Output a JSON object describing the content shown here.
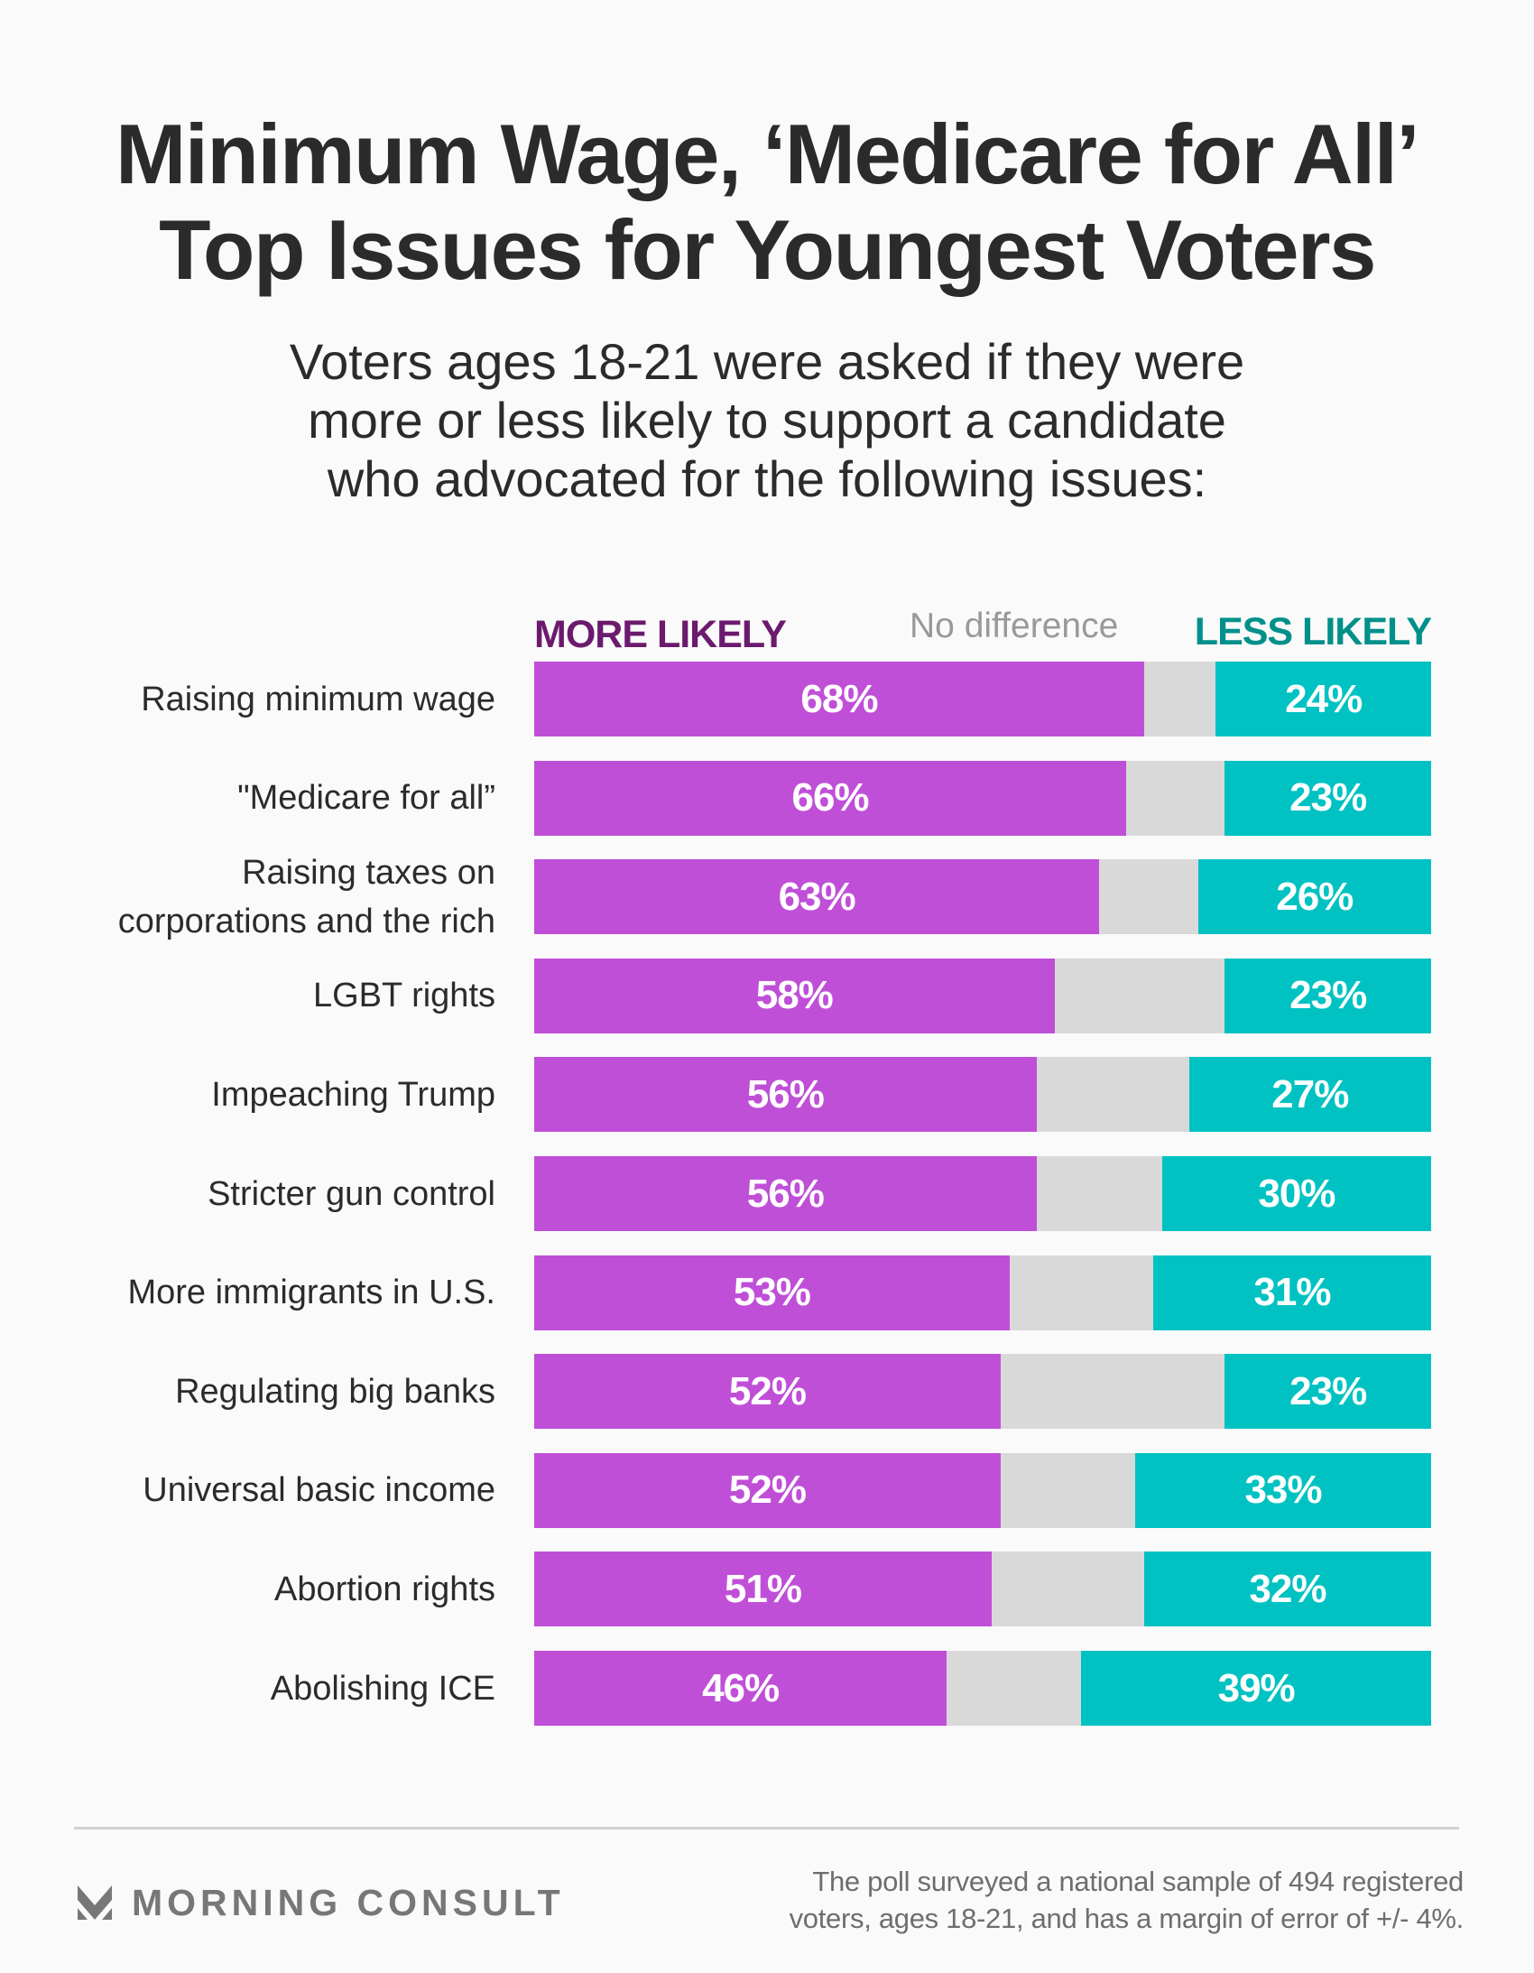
{
  "header": {
    "title_lines": [
      "Minimum Wage, ‘Medicare for All’",
      "Top Issues for Youngest Voters"
    ],
    "subtitle_lines": [
      "Voters ages 18-21 were asked if they were",
      "more or less likely to support a candidate",
      "who advocated for the following issues:"
    ]
  },
  "colors": {
    "more_likely": "#c04fd8",
    "no_difference": "#d9d9d9",
    "less_likely": "#00c2c2",
    "more_likely_legend": "#6b1a6e",
    "less_likely_legend": "#00908a",
    "background": "#fafafa"
  },
  "chart_data": {
    "type": "bar",
    "orientation": "horizontal-stacked",
    "title": "Minimum Wage, ‘Medicare for All’ Top Issues for Youngest Voters",
    "subtitle": "Voters ages 18-21 were asked if they were more or less likely to support a candidate who advocated for the following issues:",
    "legend": {
      "placement": "top",
      "entries": [
        "MORE LIKELY",
        "No difference",
        "LESS LIKELY"
      ]
    },
    "unit": "%",
    "xlim": [
      0,
      100
    ],
    "categories": [
      [
        "Raising minimum wage"
      ],
      [
        "\"Medicare for all”"
      ],
      [
        "Raising taxes on",
        "corporations and the rich"
      ],
      [
        "LGBT rights"
      ],
      [
        "Impeaching Trump"
      ],
      [
        "Stricter gun control"
      ],
      [
        "More immigrants in U.S."
      ],
      [
        "Regulating big banks"
      ],
      [
        "Universal basic income"
      ],
      [
        "Abortion rights"
      ],
      [
        "Abolishing ICE"
      ]
    ],
    "series": [
      {
        "name": "MORE LIKELY",
        "values": [
          68,
          66,
          63,
          58,
          56,
          56,
          53,
          52,
          52,
          51,
          46
        ]
      },
      {
        "name": "No difference",
        "values": [
          8,
          11,
          11,
          19,
          17,
          14,
          16,
          25,
          15,
          17,
          15
        ],
        "labeled": false
      },
      {
        "name": "LESS LIKELY",
        "values": [
          24,
          23,
          26,
          23,
          27,
          30,
          31,
          23,
          33,
          32,
          39
        ]
      }
    ]
  },
  "footer": {
    "brand": "MORNING CONSULT",
    "note_lines": [
      "The poll surveyed a national sample of 494 registered",
      "voters, ages 18-21, and has a margin of error of +/- 4%."
    ]
  }
}
